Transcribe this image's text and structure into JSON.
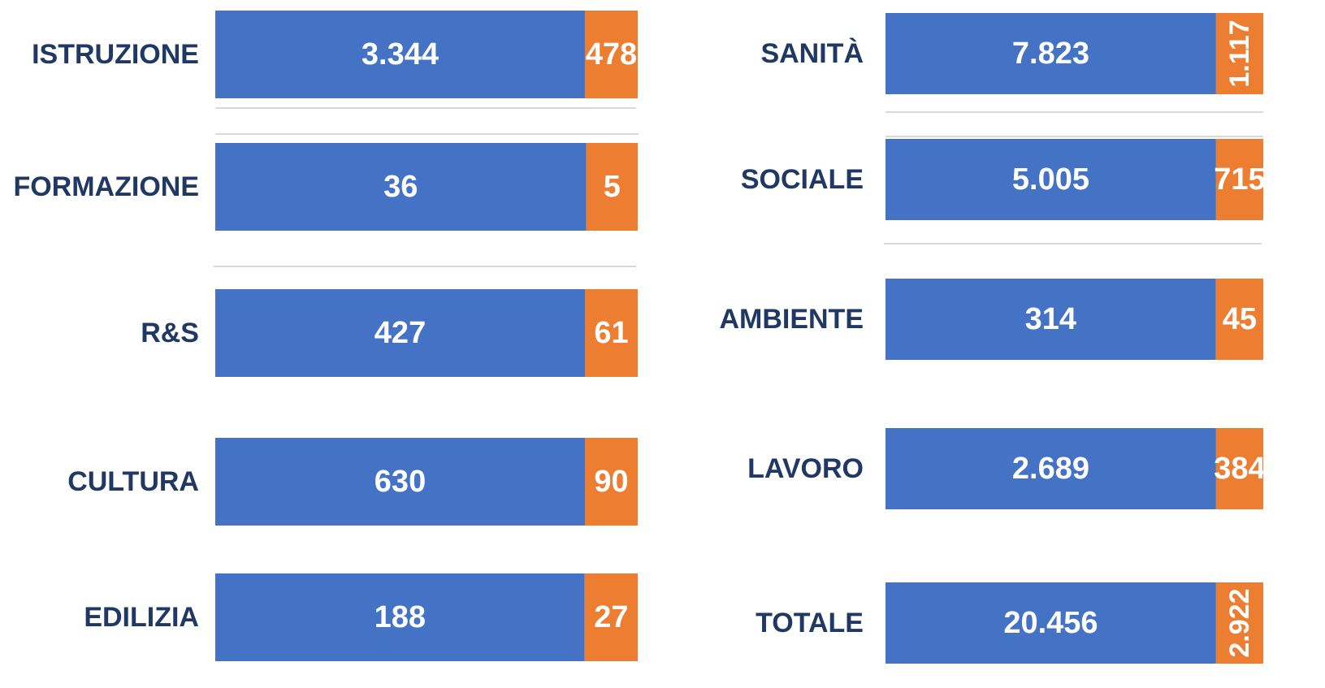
{
  "chart_data": [
    {
      "type": "bar",
      "stacked": true,
      "normalized": true,
      "categories": [
        "ISTRUZIONE",
        "FORMAZIONE",
        "R&S",
        "CULTURA",
        "EDILIZIA"
      ],
      "series": [
        {
          "color": "#4472c4",
          "values": [
            3344,
            36,
            427,
            630,
            188
          ],
          "value_labels": [
            "3.344",
            "36",
            "427",
            "630",
            "188"
          ]
        },
        {
          "color": "#ed7d31",
          "values": [
            478,
            5,
            61,
            90,
            27
          ],
          "value_labels": [
            "478",
            "5",
            "61",
            "90",
            "27"
          ]
        }
      ]
    },
    {
      "type": "bar",
      "stacked": true,
      "normalized": true,
      "categories": [
        "SANITÀ",
        "SOCIALE",
        "AMBIENTE",
        "LAVORO",
        "TOTALE"
      ],
      "series": [
        {
          "color": "#4472c4",
          "values": [
            7823,
            5005,
            314,
            2689,
            20456
          ],
          "value_labels": [
            "7.823",
            "5.005",
            "314",
            "2.689",
            "20.456"
          ]
        },
        {
          "color": "#ed7d31",
          "values": [
            1117,
            715,
            45,
            384,
            2922
          ],
          "value_labels": [
            "1.117",
            "715",
            "45",
            "384",
            "2.922"
          ]
        }
      ]
    }
  ]
}
